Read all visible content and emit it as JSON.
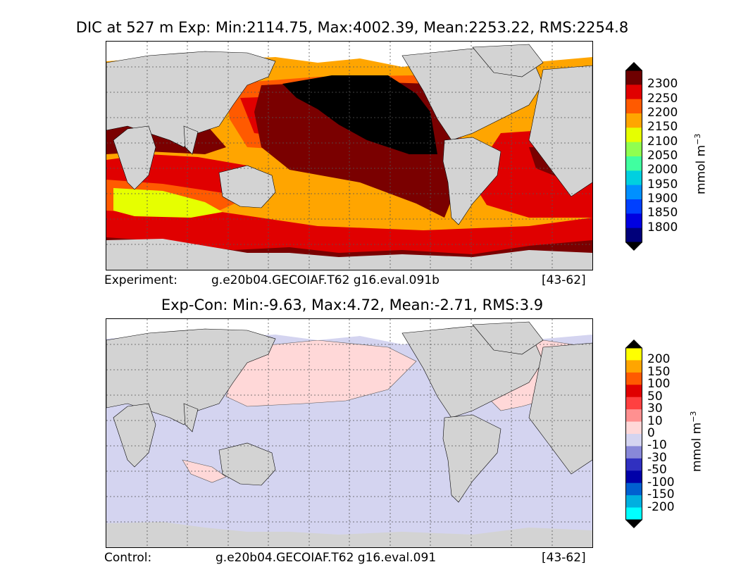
{
  "top_panel": {
    "title": "DIC at 527 m Exp: Min:2114.75, Max:4002.39, Mean:2253.22, RMS:2254.8",
    "caption_left": "Experiment:",
    "caption_case": "g.e20b04.GECOIAF.T62 g16.eval.091b",
    "caption_years": "[43-62]",
    "colorbar": {
      "ticks": [
        "2300",
        "2250",
        "2200",
        "2150",
        "2100",
        "2050",
        "2000",
        "1950",
        "1900",
        "1850",
        "1800"
      ],
      "colors_top_to_bottom": [
        "#6e0000",
        "#e00000",
        "#ff5a00",
        "#ffa500",
        "#e6ff00",
        "#90ff50",
        "#40ffa0",
        "#00d0e0",
        "#0090ff",
        "#0040ff",
        "#0000e0",
        "#00007a"
      ],
      "over_color": "#000000",
      "under_color": "#000000",
      "unit": "mmol m",
      "unit_exp": "−3"
    }
  },
  "bottom_panel": {
    "title": "Exp-Con: Min:-9.63, Max:4.72, Mean:-2.71, RMS:3.9",
    "caption_left": "Control:",
    "caption_case": "g.e20b04.GECOIAF.T62 g16.eval.091",
    "caption_years": "[43-62]",
    "colorbar": {
      "ticks": [
        "200",
        "150",
        "100",
        "50",
        "30",
        "10",
        "0",
        "-10",
        "-30",
        "-50",
        "-100",
        "-150",
        "-200"
      ],
      "colors_top_to_bottom": [
        "#ffff00",
        "#ffa500",
        "#ff5a00",
        "#e00000",
        "#ff4040",
        "#ff9090",
        "#ffd8d8",
        "#d4d4f0",
        "#8888d8",
        "#3030c0",
        "#0000a8",
        "#0060d0",
        "#00b0e0",
        "#00ffff"
      ],
      "over_color": "#000000",
      "under_color": "#000000",
      "unit": "mmol m",
      "unit_exp": "−3"
    }
  },
  "colors": {
    "land": "#d3d3d3",
    "ice": "#ffffff",
    "top_ocean_base": "#ffa500",
    "top_dark_red": "#7a0000",
    "top_red": "#e00000",
    "top_orange_red": "#ff5a00",
    "top_yellow": "#e6ff00",
    "top_black": "#000000",
    "diff_negative": "#d4d4f0",
    "diff_positive": "#ffd8d8"
  }
}
